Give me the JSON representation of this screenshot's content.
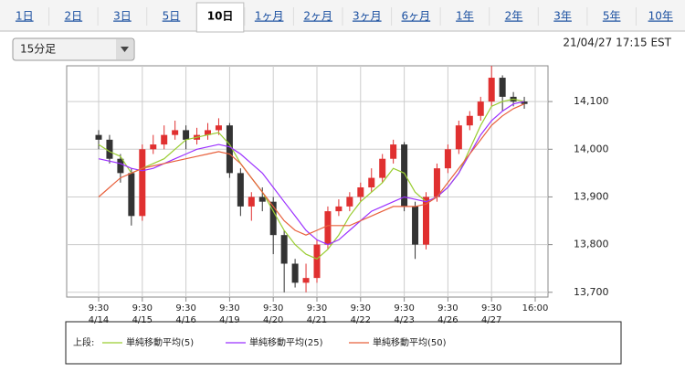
{
  "tabs": {
    "items": [
      "1日",
      "2日",
      "3日",
      "5日",
      "10日",
      "1ヶ月",
      "2ヶ月",
      "3ヶ月",
      "6ヶ月",
      "1年",
      "2年",
      "3年",
      "5年",
      "10年"
    ],
    "active": 4
  },
  "selector": {
    "label": "15分足"
  },
  "timestamp": "21/04/27 17:15 EST",
  "chart_data": {
    "type": "candlestick",
    "ylim": [
      13690,
      14175
    ],
    "yticks": [
      {
        "value": 13700,
        "label": "13,700"
      },
      {
        "value": 13800,
        "label": "13,800"
      },
      {
        "value": 13900,
        "label": "13,900"
      },
      {
        "value": 14000,
        "label": "14,000"
      },
      {
        "value": 14100,
        "label": "14,100"
      }
    ],
    "grid": true,
    "x_ticks": [
      {
        "time": "9:30",
        "date": "4/14"
      },
      {
        "time": "9:30",
        "date": "4/15"
      },
      {
        "time": "9:30",
        "date": "4/16"
      },
      {
        "time": "9:30",
        "date": "4/19"
      },
      {
        "time": "9:30",
        "date": "4/20"
      },
      {
        "time": "9:30",
        "date": "4/21"
      },
      {
        "time": "9:30",
        "date": "4/22"
      },
      {
        "time": "9:30",
        "date": "4/23"
      },
      {
        "time": "9:30",
        "date": "4/26"
      },
      {
        "time": "9:30",
        "date": "4/27"
      },
      {
        "time": "16:00"
      }
    ],
    "up_color": "#e03030",
    "down_color": "#333333",
    "ohlc": [
      [
        14030,
        14040,
        14000,
        14020
      ],
      [
        14020,
        14030,
        13970,
        13980
      ],
      [
        13980,
        13990,
        13930,
        13950
      ],
      [
        13950,
        13960,
        13840,
        13860
      ],
      [
        13860,
        14010,
        13850,
        14000
      ],
      [
        14000,
        14030,
        13990,
        14010
      ],
      [
        14010,
        14050,
        14000,
        14030
      ],
      [
        14030,
        14060,
        14020,
        14040
      ],
      [
        14040,
        14050,
        14000,
        14020
      ],
      [
        14020,
        14045,
        14010,
        14030
      ],
      [
        14030,
        14055,
        14020,
        14040
      ],
      [
        14040,
        14065,
        14030,
        14050
      ],
      [
        14050,
        14055,
        13940,
        13950
      ],
      [
        13950,
        13960,
        13860,
        13880
      ],
      [
        13880,
        13910,
        13850,
        13900
      ],
      [
        13900,
        13920,
        13870,
        13890
      ],
      [
        13890,
        13900,
        13780,
        13820
      ],
      [
        13820,
        13830,
        13700,
        13760
      ],
      [
        13760,
        13770,
        13710,
        13720
      ],
      [
        13720,
        13760,
        13700,
        13730
      ],
      [
        13730,
        13810,
        13720,
        13800
      ],
      [
        13800,
        13880,
        13790,
        13870
      ],
      [
        13870,
        13895,
        13860,
        13880
      ],
      [
        13880,
        13910,
        13870,
        13900
      ],
      [
        13900,
        13930,
        13890,
        13920
      ],
      [
        13920,
        13960,
        13910,
        13940
      ],
      [
        13940,
        13990,
        13930,
        13980
      ],
      [
        13980,
        14020,
        13970,
        14010
      ],
      [
        14010,
        14015,
        13870,
        13880
      ],
      [
        13880,
        13890,
        13770,
        13800
      ],
      [
        13800,
        13910,
        13790,
        13900
      ],
      [
        13900,
        13970,
        13890,
        13960
      ],
      [
        13960,
        14010,
        13950,
        14000
      ],
      [
        14000,
        14060,
        13990,
        14050
      ],
      [
        14050,
        14080,
        14040,
        14070
      ],
      [
        14070,
        14110,
        14060,
        14100
      ],
      [
        14100,
        14175,
        14090,
        14150
      ],
      [
        14150,
        14155,
        14080,
        14110
      ],
      [
        14110,
        14120,
        14090,
        14100
      ],
      [
        14100,
        14110,
        14085,
        14095
      ]
    ],
    "legend_prefix": "上段:",
    "series": [
      {
        "name": "単純移動平均(5)",
        "color": "#9acd32",
        "values": [
          14010,
          13995,
          13985,
          13950,
          13960,
          13970,
          13980,
          14000,
          14020,
          14025,
          14030,
          14035,
          14010,
          13970,
          13940,
          13910,
          13870,
          13830,
          13800,
          13780,
          13770,
          13790,
          13820,
          13860,
          13890,
          13910,
          13930,
          13960,
          13950,
          13910,
          13890,
          13900,
          13920,
          13950,
          14000,
          14050,
          14090,
          14100,
          14105,
          14100
        ]
      },
      {
        "name": "単純移動平均(25)",
        "color": "#9b30ff",
        "values": [
          13980,
          13975,
          13970,
          13960,
          13955,
          13960,
          13970,
          13980,
          13990,
          14000,
          14005,
          14010,
          14005,
          13990,
          13970,
          13950,
          13920,
          13890,
          13860,
          13830,
          13810,
          13800,
          13810,
          13830,
          13850,
          13870,
          13880,
          13890,
          13900,
          13895,
          13890,
          13900,
          13920,
          13950,
          13990,
          14030,
          14060,
          14080,
          14095,
          14100
        ]
      },
      {
        "name": "単純移動平均(50)",
        "color": "#e8603c",
        "values": [
          13900,
          13920,
          13940,
          13950,
          13960,
          13965,
          13970,
          13975,
          13980,
          13985,
          13990,
          13995,
          13990,
          13970,
          13940,
          13910,
          13880,
          13850,
          13830,
          13820,
          13830,
          13840,
          13840,
          13840,
          13850,
          13860,
          13870,
          13880,
          13880,
          13880,
          13885,
          13900,
          13930,
          13960,
          13990,
          14020,
          14050,
          14070,
          14085,
          14095
        ]
      }
    ]
  }
}
